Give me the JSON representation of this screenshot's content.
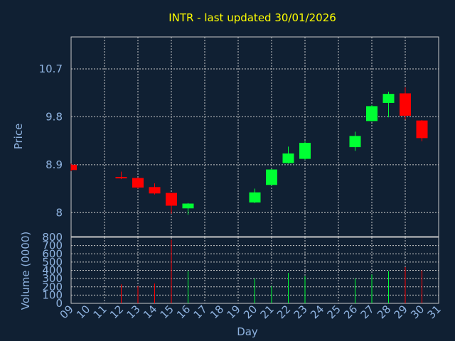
{
  "chart_data": {
    "type": "candlestick",
    "title": "INTR - last updated 30/01/2026",
    "xlabel": "Day",
    "x_ticks": [
      "09",
      "10",
      "11",
      "12",
      "13",
      "14",
      "15",
      "16",
      "17",
      "18",
      "19",
      "20",
      "21",
      "22",
      "23",
      "24",
      "25",
      "26",
      "27",
      "28",
      "29",
      "30",
      "31"
    ],
    "price_panel": {
      "ylabel": "Price",
      "ylim": [
        7.55,
        11.3
      ],
      "y_ticks": [
        8,
        8.9,
        9.8,
        10.7
      ],
      "y_tick_labels": [
        "8",
        "8.9",
        "9.8",
        "10.7"
      ],
      "candles": [
        {
          "day": 9,
          "open": 8.9,
          "high": 8.92,
          "low": 8.78,
          "close": 8.8
        },
        {
          "day": 12,
          "open": 8.67,
          "high": 8.77,
          "low": 8.63,
          "close": 8.66
        },
        {
          "day": 13,
          "open": 8.65,
          "high": 8.66,
          "low": 8.45,
          "close": 8.47
        },
        {
          "day": 14,
          "open": 8.48,
          "high": 8.55,
          "low": 8.34,
          "close": 8.36
        },
        {
          "day": 15,
          "open": 8.37,
          "high": 8.37,
          "low": 7.98,
          "close": 8.13
        },
        {
          "day": 16,
          "open": 8.08,
          "high": 8.18,
          "low": 7.96,
          "close": 8.17
        },
        {
          "day": 20,
          "open": 8.19,
          "high": 8.45,
          "low": 8.18,
          "close": 8.38
        },
        {
          "day": 21,
          "open": 8.52,
          "high": 8.82,
          "low": 8.51,
          "close": 8.81
        },
        {
          "day": 22,
          "open": 8.93,
          "high": 9.24,
          "low": 8.92,
          "close": 9.11
        },
        {
          "day": 23,
          "open": 9.01,
          "high": 9.34,
          "low": 8.99,
          "close": 9.31
        },
        {
          "day": 26,
          "open": 9.23,
          "high": 9.52,
          "low": 9.16,
          "close": 9.44
        },
        {
          "day": 27,
          "open": 9.72,
          "high": 10.02,
          "low": 9.71,
          "close": 10.0
        },
        {
          "day": 28,
          "open": 10.06,
          "high": 10.27,
          "low": 9.79,
          "close": 10.23
        },
        {
          "day": 29,
          "open": 10.24,
          "high": 10.35,
          "low": 9.75,
          "close": 9.82
        },
        {
          "day": 30,
          "open": 9.73,
          "high": 9.74,
          "low": 9.34,
          "close": 9.4
        }
      ]
    },
    "volume_panel": {
      "ylabel": "Volume (0000)",
      "ylim": [
        0,
        800
      ],
      "y_ticks": [
        0,
        100,
        200,
        300,
        400,
        500,
        600,
        700,
        800
      ],
      "bars": [
        {
          "day": 12,
          "value": 230,
          "direction": "down"
        },
        {
          "day": 13,
          "value": 210,
          "direction": "down"
        },
        {
          "day": 14,
          "value": 240,
          "direction": "down"
        },
        {
          "day": 15,
          "value": 770,
          "direction": "down"
        },
        {
          "day": 16,
          "value": 390,
          "direction": "up"
        },
        {
          "day": 20,
          "value": 300,
          "direction": "up"
        },
        {
          "day": 21,
          "value": 210,
          "direction": "up"
        },
        {
          "day": 22,
          "value": 370,
          "direction": "up"
        },
        {
          "day": 23,
          "value": 330,
          "direction": "up"
        },
        {
          "day": 26,
          "value": 300,
          "direction": "up"
        },
        {
          "day": 27,
          "value": 350,
          "direction": "up"
        },
        {
          "day": 28,
          "value": 390,
          "direction": "up"
        },
        {
          "day": 29,
          "value": 440,
          "direction": "down"
        },
        {
          "day": 30,
          "value": 400,
          "direction": "down"
        }
      ]
    },
    "grid": true,
    "colors": {
      "background": "#102033",
      "title": "#ffff00",
      "axis_text": "#8fb3e0",
      "grid": "#c8c8c8",
      "up": "#00ff33",
      "down": "#ff0000"
    }
  }
}
